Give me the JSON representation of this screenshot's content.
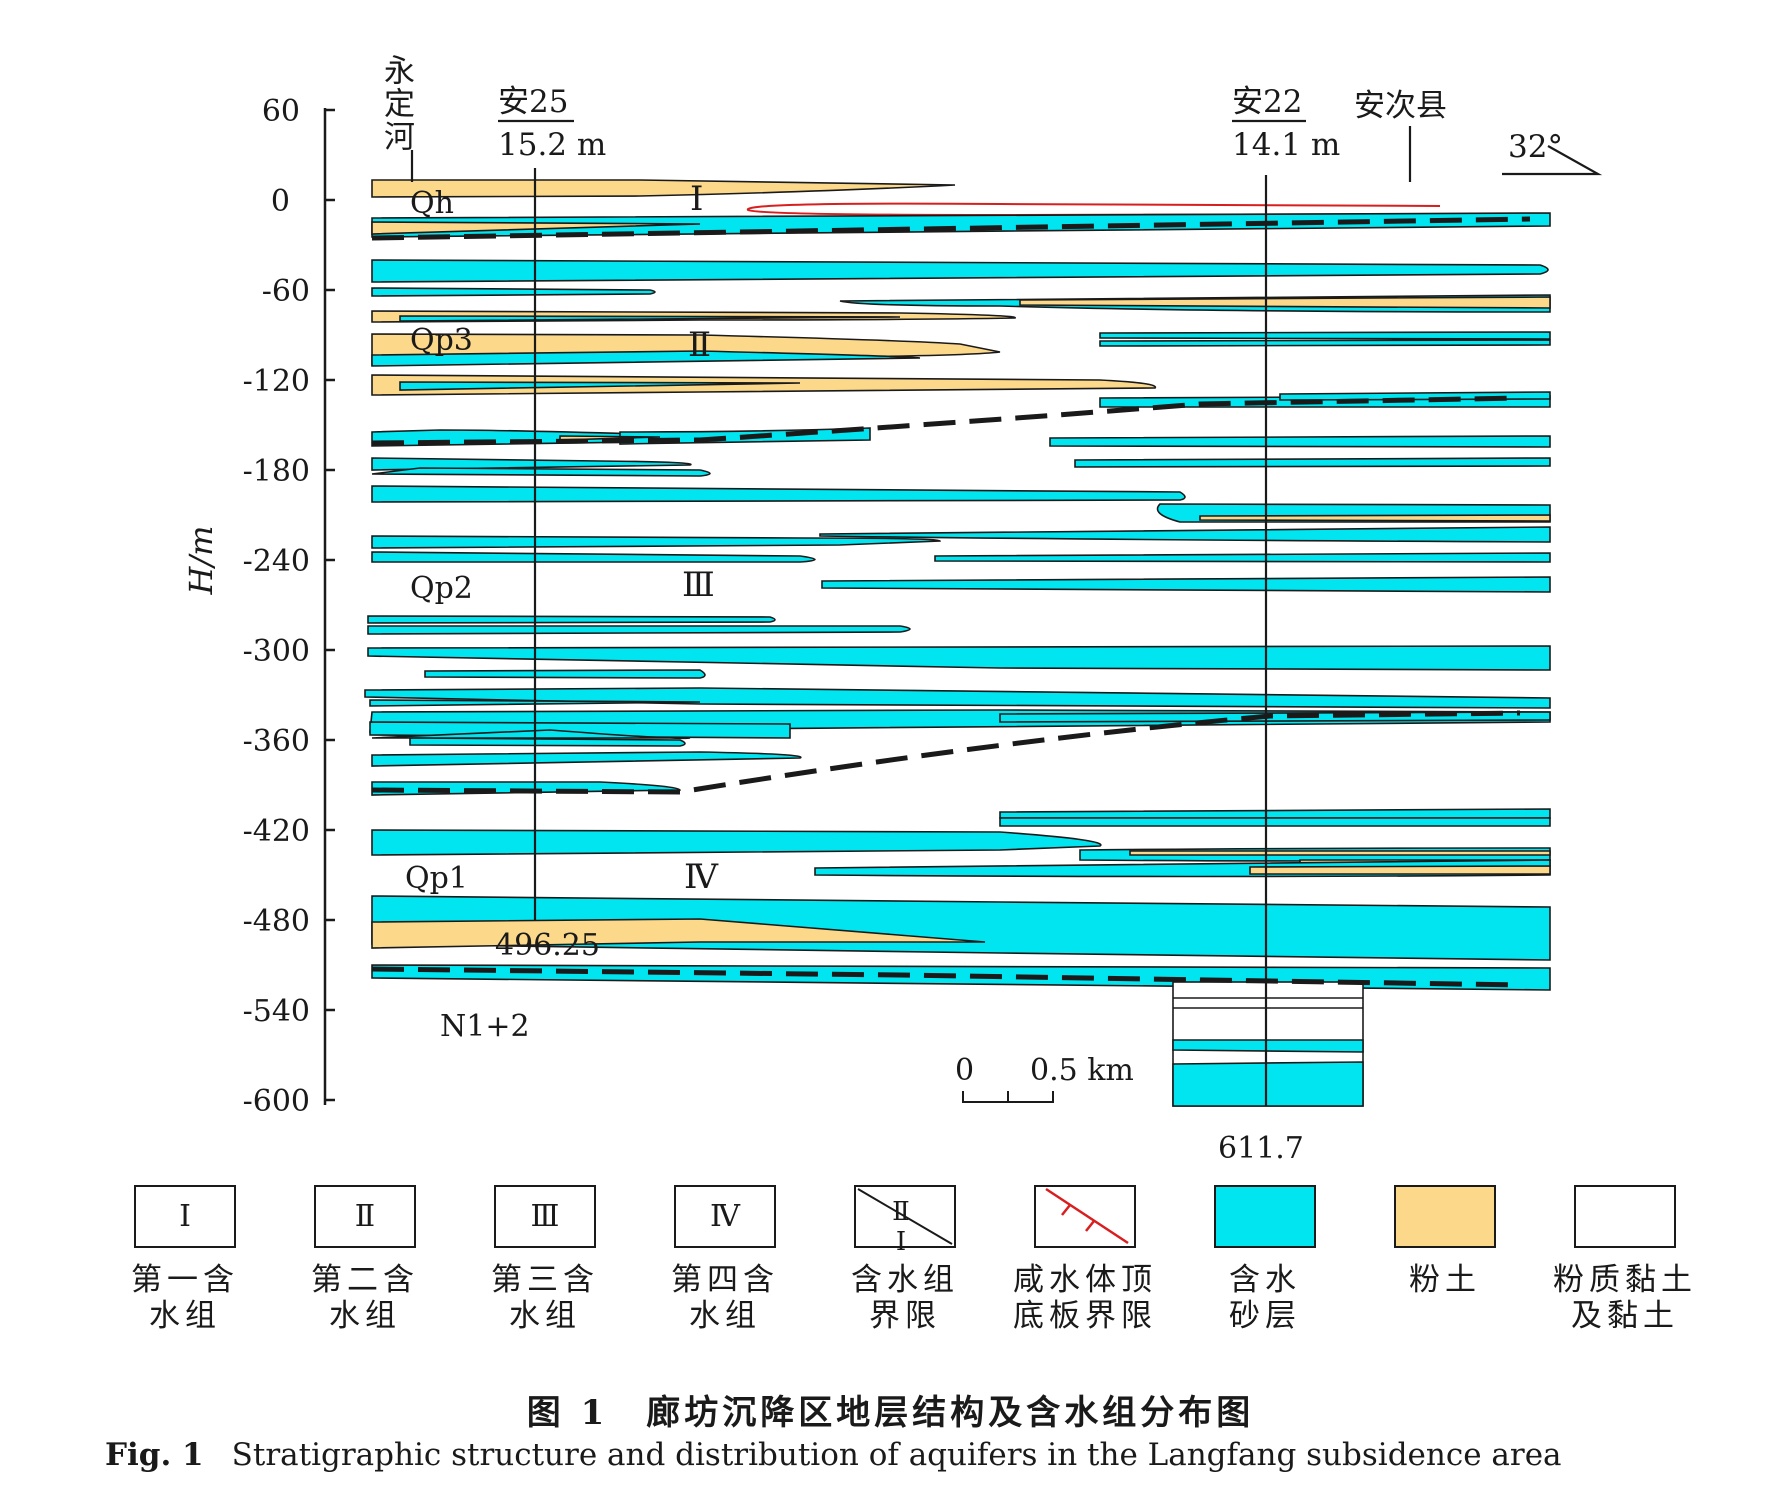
{
  "axis": {
    "label": "H/m",
    "ticks": [
      "60",
      "0",
      "-60",
      "-120",
      "-180",
      "-240",
      "-300",
      "-360",
      "-420",
      "-480",
      "-540",
      "-600"
    ]
  },
  "places": {
    "river": "永定河",
    "county": "安次县",
    "angle": "32°"
  },
  "wells": [
    {
      "name": "安25",
      "elevation": "15.2 m",
      "depth": "496.25"
    },
    {
      "name": "安22",
      "elevation": "14.1 m",
      "depth": "611.7"
    }
  ],
  "strata": [
    "Qh",
    "Qp3",
    "Qp2",
    "Qp1",
    "N1+2"
  ],
  "aquifer_groups": [
    "Ⅰ",
    "Ⅱ",
    "Ⅲ",
    "Ⅳ"
  ],
  "scale": {
    "zero": "0",
    "value": "0.5 km"
  },
  "legend": [
    {
      "symbol": "Ⅰ",
      "label": "第一含\n水组"
    },
    {
      "symbol": "Ⅱ",
      "label": "第二含\n水组"
    },
    {
      "symbol": "Ⅲ",
      "label": "第三含\n水组"
    },
    {
      "symbol": "Ⅳ",
      "label": "第四含\n水组"
    },
    {
      "symbol": "Ⅱ Ⅰ",
      "label": "含水组\n界限"
    },
    {
      "symbol": "",
      "label": "咸水体顶\n底板界限"
    },
    {
      "symbol": "",
      "label": "含水\n砂层"
    },
    {
      "symbol": "",
      "label": "粉土"
    },
    {
      "symbol": "",
      "label": "粉质黏土\n及黏土"
    }
  ],
  "colors": {
    "aquifer_sand": "#00e5f0",
    "silt": "#fbd88a",
    "clay": "#ffffff",
    "saltwater_boundary": "#d81e1e",
    "line": "#1a1a1a"
  },
  "caption": {
    "zh": "图 1　廊坊沉降区地层结构及含水组分布图",
    "en_label": "Fig. 1",
    "en_text": "Stratigraphic structure and distribution of aquifers in the Langfang subsidence area"
  }
}
